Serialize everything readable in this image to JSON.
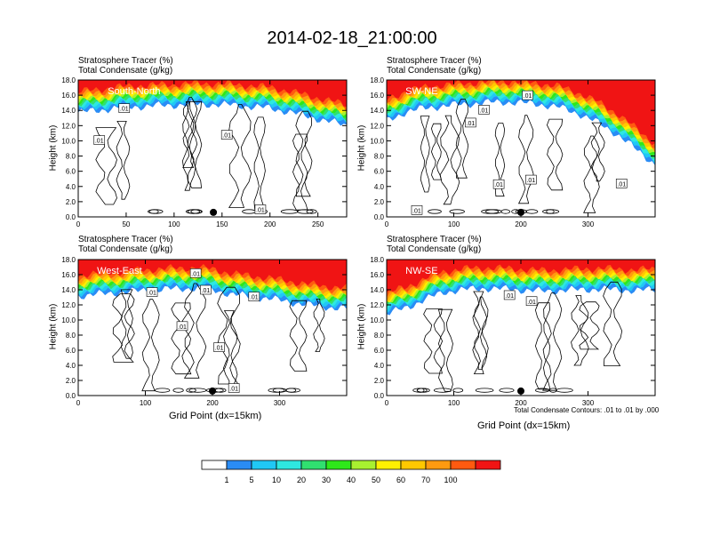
{
  "title": "2014-02-18_21:00:00",
  "colors": {
    "levels": [
      "#ffffff",
      "#2a8cf5",
      "#20c8f5",
      "#2ee8e0",
      "#30e070",
      "#2ee81a",
      "#a8f030",
      "#fff000",
      "#ffc800",
      "#ff9a10",
      "#ff5a10",
      "#f01414"
    ]
  },
  "panel_defaults": {
    "field_title": "Stratosphere Tracer   (%)",
    "contour_title": "Total Condensate   (g/kg)",
    "ylabel": "Height (km)"
  },
  "xlabel": "Grid Point (dx=15km)",
  "contour_note": "Total Condensate Contours: .01 to .01 by .000",
  "colorbar": {
    "tick_labels": [
      "1",
      "5",
      "10",
      "20",
      "30",
      "40",
      "50",
      "60",
      "70",
      "100"
    ]
  },
  "chart_data": [
    {
      "type": "heatmap",
      "panel_label": "South-North",
      "ylim": [
        0,
        18
      ],
      "xlim": [
        0,
        280
      ],
      "y_ticks": [
        "0.0",
        "2.0",
        "4.0",
        "6.0",
        "8.0",
        "10.0",
        "12.0",
        "14.0",
        "16.0",
        "18.0"
      ],
      "x_ticks": [
        {
          "v": 0,
          "label": "0"
        },
        {
          "v": 50,
          "label": "50"
        },
        {
          "v": 100,
          "label": "100"
        },
        {
          "v": 150,
          "label": "150"
        },
        {
          "v": 200,
          "label": "200"
        },
        {
          "v": 250,
          "label": "250"
        }
      ],
      "tropopause_km": [
        15.3,
        15.6,
        15.9,
        16.1,
        16.2,
        16.3,
        16.4,
        16.4,
        16.3,
        16.1,
        15.9,
        15.4,
        14.8,
        14.2,
        13.6
      ],
      "marker_x": 141,
      "contour_labels": [
        {
          "x": 48,
          "y": 14.3,
          "t": ".01"
        },
        {
          "x": 22,
          "y": 10.1,
          "t": ".01"
        },
        {
          "x": 155,
          "y": 10.8,
          "t": ".01"
        },
        {
          "x": 190,
          "y": 1.0,
          "t": ".01"
        }
      ]
    },
    {
      "type": "heatmap",
      "panel_label": "SW-NE",
      "ylim": [
        0,
        18
      ],
      "xlim": [
        0,
        400
      ],
      "y_ticks": [
        "0.0",
        "2.0",
        "4.0",
        "6.0",
        "8.0",
        "10.0",
        "12.0",
        "14.0",
        "16.0",
        "18.0"
      ],
      "x_ticks": [
        {
          "v": 0,
          "label": "0"
        },
        {
          "v": 100,
          "label": "100"
        },
        {
          "v": 200,
          "label": "200"
        },
        {
          "v": 300,
          "label": "300"
        }
      ],
      "tropopause_km": [
        14.2,
        15.4,
        15.9,
        16.2,
        16.4,
        16.6,
        16.7,
        16.6,
        16.4,
        16.0,
        15.2,
        14.0,
        12.5,
        10.5,
        8.5
      ],
      "marker_x": 200,
      "contour_labels": [
        {
          "x": 210,
          "y": 16.0,
          "t": ".01"
        },
        {
          "x": 145,
          "y": 14.1,
          "t": ".01"
        },
        {
          "x": 125,
          "y": 12.4,
          "t": ".01"
        },
        {
          "x": 167,
          "y": 4.3,
          "t": ".01"
        },
        {
          "x": 215,
          "y": 4.9,
          "t": ".01"
        },
        {
          "x": 350,
          "y": 4.4,
          "t": ".01"
        },
        {
          "x": 45,
          "y": 0.9,
          "t": ".01"
        }
      ]
    },
    {
      "type": "heatmap",
      "panel_label": "West-East",
      "ylim": [
        0,
        18
      ],
      "xlim": [
        0,
        400
      ],
      "y_ticks": [
        "0.0",
        "2.0",
        "4.0",
        "6.0",
        "8.0",
        "10.0",
        "12.0",
        "14.0",
        "16.0",
        "18.0"
      ],
      "x_ticks": [
        {
          "v": 0,
          "label": "0"
        },
        {
          "v": 100,
          "label": "100"
        },
        {
          "v": 200,
          "label": "200"
        },
        {
          "v": 300,
          "label": "300"
        }
      ],
      "tropopause_km": [
        14.8,
        15.0,
        15.2,
        15.4,
        15.6,
        15.7,
        15.8,
        15.6,
        15.0,
        14.7,
        14.4,
        14.0,
        13.6,
        13.3,
        13.1
      ],
      "marker_x": 200,
      "contour_labels": [
        {
          "x": 175,
          "y": 16.2,
          "t": ".01"
        },
        {
          "x": 110,
          "y": 13.7,
          "t": ".01"
        },
        {
          "x": 190,
          "y": 14.0,
          "t": ".01"
        },
        {
          "x": 262,
          "y": 13.1,
          "t": ".01"
        },
        {
          "x": 155,
          "y": 9.2,
          "t": ".01"
        },
        {
          "x": 210,
          "y": 6.4,
          "t": ".01"
        },
        {
          "x": 232,
          "y": 1.0,
          "t": ".01"
        }
      ]
    },
    {
      "type": "heatmap",
      "panel_label": "NW-SE",
      "ylim": [
        0,
        18
      ],
      "xlim": [
        0,
        400
      ],
      "y_ticks": [
        "0.0",
        "2.0",
        "4.0",
        "6.0",
        "8.0",
        "10.0",
        "12.0",
        "14.0",
        "16.0",
        "18.0"
      ],
      "x_ticks": [
        {
          "v": 0,
          "label": "0"
        },
        {
          "v": 100,
          "label": "100"
        },
        {
          "v": 200,
          "label": "200"
        },
        {
          "v": 300,
          "label": "300"
        }
      ],
      "tropopause_km": [
        12.4,
        13.2,
        14.3,
        15.3,
        15.6,
        15.8,
        15.7,
        15.6,
        15.4,
        15.5,
        15.6,
        15.7,
        15.6,
        15.5,
        15.6
      ],
      "marker_x": 200,
      "contour_labels": [
        {
          "x": 183,
          "y": 13.3,
          "t": ".01"
        },
        {
          "x": 216,
          "y": 12.5,
          "t": ".01"
        }
      ]
    }
  ]
}
